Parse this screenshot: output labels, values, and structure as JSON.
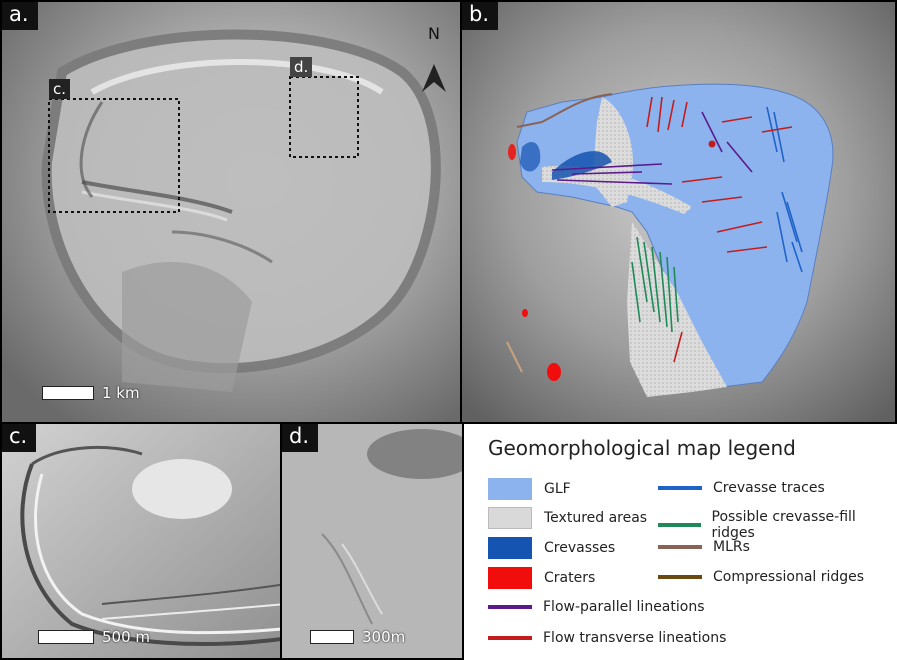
{
  "panels": {
    "a": {
      "label": "a.",
      "scale_label": "1 km",
      "inset_c": "c.",
      "inset_d": "d.",
      "north": "N"
    },
    "b": {
      "label": "b."
    },
    "c": {
      "label": "c.",
      "scale_label": "500 m"
    },
    "d": {
      "label": "d.",
      "scale_label": "300m"
    }
  },
  "legend": {
    "title": "Geomorphological map legend",
    "items": {
      "glf": {
        "label": "GLF",
        "color": "#8db3ef"
      },
      "textured": {
        "label": "Textured areas",
        "color": "#d9d9d9"
      },
      "crevasses": {
        "label": "Crevasses",
        "color": "#1554b0"
      },
      "craters": {
        "label": "Craters",
        "color": "#f20d0d"
      },
      "crevasse_traces": {
        "label": "Crevasse traces",
        "color": "#1f63c8"
      },
      "crevasse_fill": {
        "label": "Possible crevasse-fill ridges",
        "color": "#1f8a58"
      },
      "mlrs": {
        "label": "MLRs",
        "color": "#8a6354"
      },
      "compressional": {
        "label": "Compressional ridges",
        "color": "#6b4a12"
      },
      "flow_parallel": {
        "label": "Flow-parallel lineations",
        "color": "#5b1a8c"
      },
      "flow_transverse": {
        "label": "Flow transverse lineations",
        "color": "#c21d1d"
      }
    }
  }
}
